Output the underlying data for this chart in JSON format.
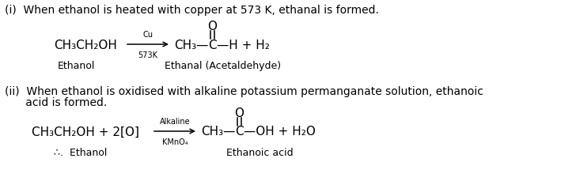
{
  "background_color": "#ffffff",
  "fig_width": 7.28,
  "fig_height": 2.3,
  "dpi": 100,
  "text_color": "#000000",
  "elements": {
    "title1": "(i)  When ethanol is heated with copper at 573 K, ethanal is formed.",
    "title2_line1": "(ii)  When ethanol is oxidised with alkaline potassium permanganate solution, ethanoic",
    "title2_line2": "      acid is formed.",
    "reaction1_left": "CH₃CH₂OH",
    "reaction1_above": "Cu",
    "reaction1_below": "573K",
    "reaction1_ch3": "CH₃—",
    "reaction1_C": "C",
    "reaction1_H": "—H + H₂",
    "reaction1_O": "O",
    "label1_left": "Ethanol",
    "label1_right": "Ethanal (Acetaldehyde)",
    "reaction2_left": "CH₃CH₂OH + 2[O]",
    "reaction2_above": "Alkaline",
    "reaction2_below": "KMnO₄",
    "reaction2_ch3": "CH₃—",
    "reaction2_C": "C",
    "reaction2_OH": "—OH + H₂O",
    "reaction2_O": "O",
    "label2_left": "∴.  Ethanol",
    "label2_right": "Ethanoic acid"
  }
}
